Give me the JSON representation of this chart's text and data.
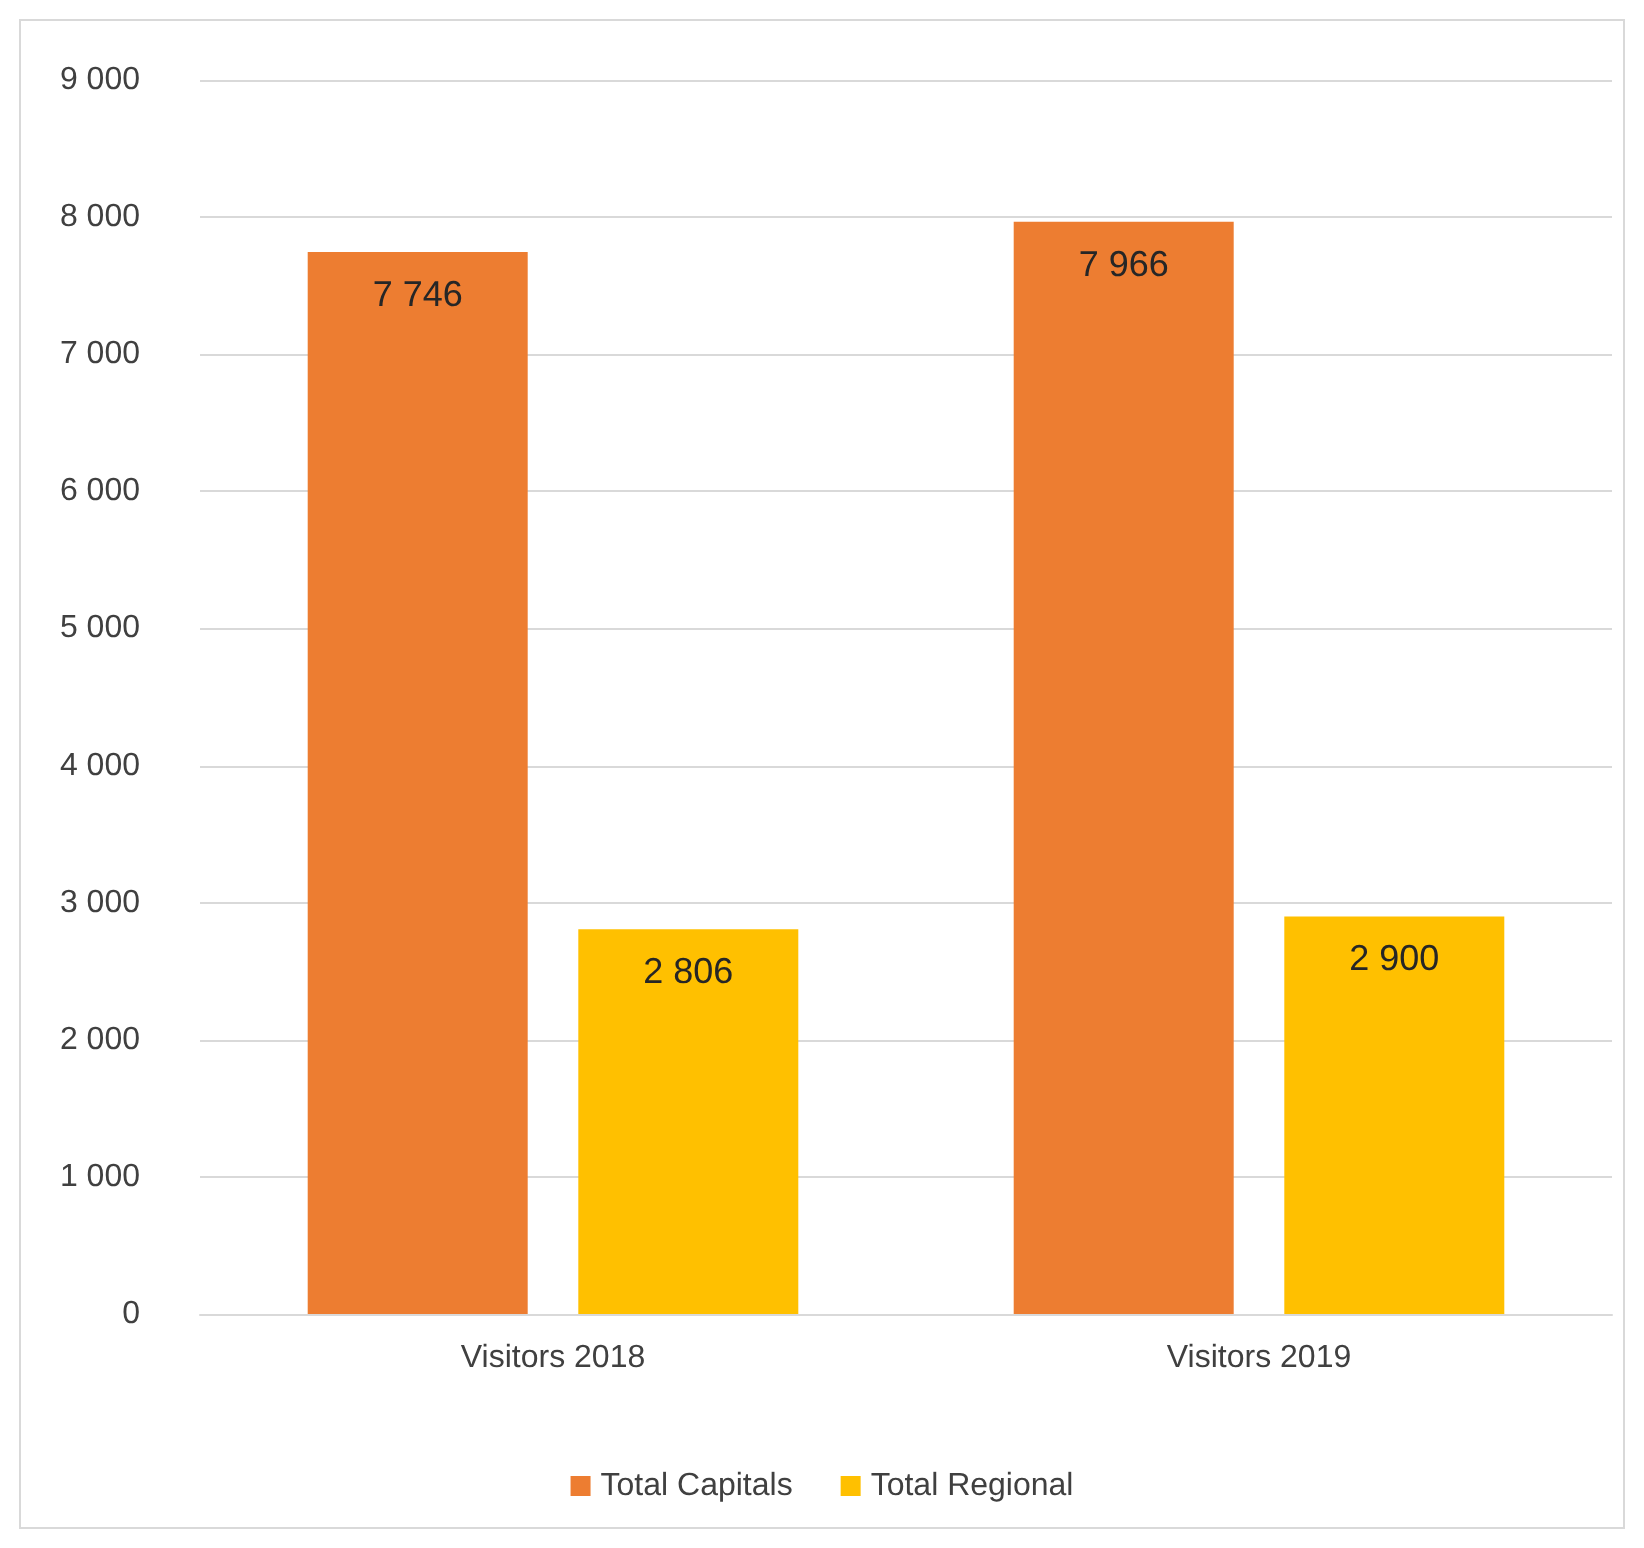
{
  "chart_data": {
    "type": "bar",
    "categories": [
      "Visitors 2018",
      "Visitors 2019"
    ],
    "series": [
      {
        "name": "Total Capitals",
        "color": "#ed7d31",
        "values": [
          7746,
          7966
        ],
        "value_labels": [
          "7 746",
          "7 966"
        ]
      },
      {
        "name": "Total Regional",
        "color": "#ffc000",
        "values": [
          2806,
          2900
        ],
        "value_labels": [
          "2 806",
          "2 900"
        ]
      }
    ],
    "ylim": [
      0,
      9000
    ],
    "yticks": [
      {
        "value": 0,
        "label": "0"
      },
      {
        "value": 1000,
        "label": "1 000"
      },
      {
        "value": 2000,
        "label": "2 000"
      },
      {
        "value": 3000,
        "label": "3 000"
      },
      {
        "value": 4000,
        "label": "4 000"
      },
      {
        "value": 5000,
        "label": "5 000"
      },
      {
        "value": 6000,
        "label": "6 000"
      },
      {
        "value": 7000,
        "label": "7 000"
      },
      {
        "value": 8000,
        "label": "8 000"
      },
      {
        "value": 9000,
        "label": "9 000"
      }
    ],
    "grid": "y",
    "legend": "bottom"
  }
}
